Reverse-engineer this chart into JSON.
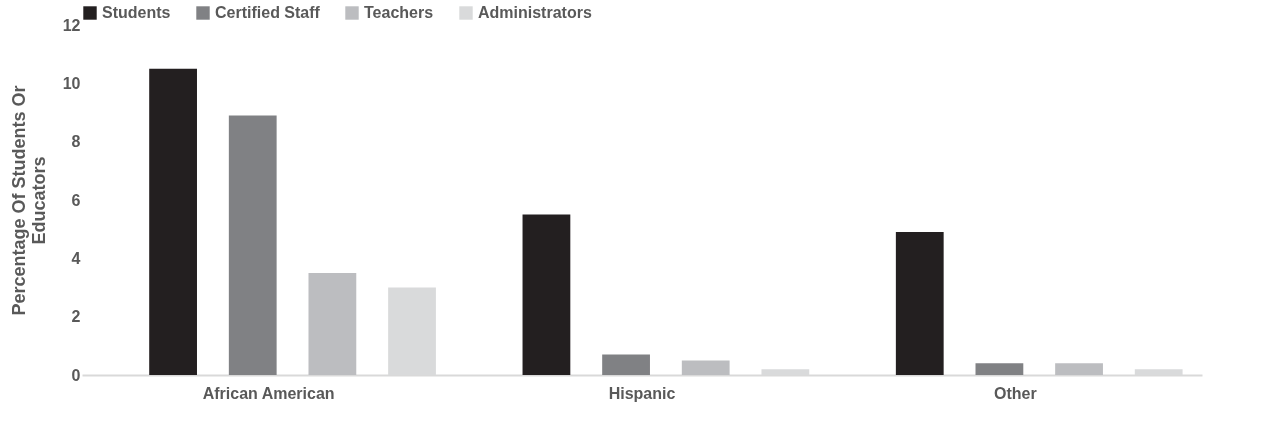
{
  "chart_data": {
    "type": "bar",
    "ylabel": "Percentage Of Students Or Educators",
    "categories": [
      "African American",
      "Hispanic",
      "Other"
    ],
    "series": [
      {
        "name": "Students",
        "color": "#231f20",
        "values": [
          10.5,
          5.5,
          4.9
        ]
      },
      {
        "name": "Certified Staff",
        "color": "#808184",
        "values": [
          8.9,
          0.7,
          0.4
        ]
      },
      {
        "name": "Teachers",
        "color": "#bcbdc0",
        "values": [
          3.5,
          0.5,
          0.4
        ]
      },
      {
        "name": "Administrators",
        "color": "#d9dadb",
        "values": [
          3.0,
          0.2,
          0.2
        ]
      }
    ],
    "ylim": [
      0,
      12
    ],
    "yticks": [
      0,
      2,
      4,
      6,
      8,
      10,
      12
    ],
    "grid": false,
    "legend": "top"
  }
}
